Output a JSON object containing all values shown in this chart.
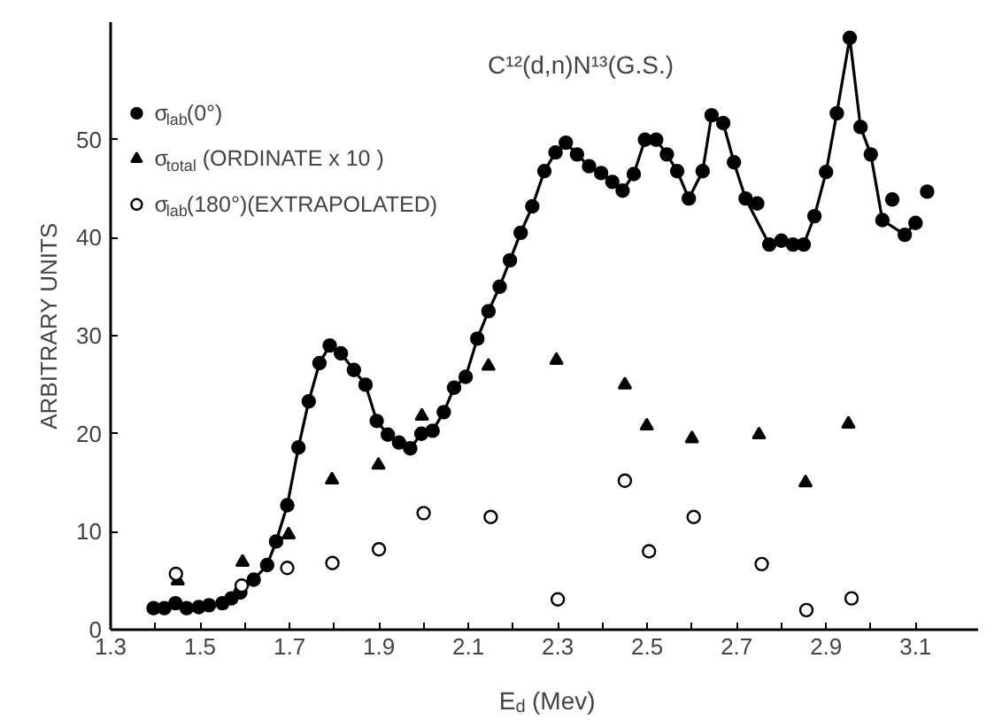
{
  "chart_data": {
    "type": "scatter",
    "title": "C¹²(d,n)N¹³(G.S.)",
    "xlabel": "E$_{d}$ (Mev)",
    "ylabel": "ARBITRARY UNITS",
    "xlim": [
      1.3,
      3.24
    ],
    "ylim": [
      0,
      62
    ],
    "xticks": [
      1.3,
      {
        "value": 1.4,
        "label": null
      },
      1.5,
      {
        "value": 1.6,
        "label": null
      },
      1.7,
      {
        "value": 1.8,
        "label": null
      },
      1.9,
      {
        "value": 2.0,
        "label": null
      },
      2.1,
      {
        "value": 2.2,
        "label": null
      },
      2.3,
      {
        "value": 2.4,
        "label": null
      },
      2.5,
      {
        "value": 2.6,
        "label": null
      },
      2.7,
      {
        "value": 2.8,
        "label": null
      },
      2.9,
      {
        "value": 3.0,
        "label": null
      },
      3.1
    ],
    "yticks": [
      0,
      10,
      20,
      30,
      40,
      50
    ],
    "grid": false,
    "legend": "top left",
    "series": [
      {
        "type": "line",
        "color": "#000000",
        "marker": "none",
        "x": [
          1.396,
          1.42,
          1.445,
          1.47,
          1.497,
          1.52,
          1.55,
          1.57,
          1.59,
          1.62,
          1.65,
          1.67,
          1.695,
          1.72,
          1.743,
          1.767,
          1.79,
          1.815,
          1.844,
          1.87,
          1.895,
          1.92,
          1.945,
          1.97,
          1.995,
          2.02,
          2.045,
          2.068,
          2.094,
          2.12,
          2.145,
          2.17,
          2.193,
          2.217,
          2.243,
          2.27,
          2.295,
          2.318,
          2.343,
          2.37,
          2.397,
          2.422,
          2.445,
          2.47,
          2.495,
          2.52,
          2.544,
          2.567,
          2.593,
          2.624,
          2.644,
          2.67,
          2.694,
          2.72,
          2.773,
          2.8,
          2.826,
          2.85,
          2.874,
          2.9,
          2.924,
          2.953,
          2.977,
          3.0,
          3.026,
          3.076,
          3.1
        ],
        "values": [
          2.2,
          2.2,
          2.5,
          2.2,
          2.3,
          2.5,
          2.7,
          3.2,
          3.8,
          5.1,
          6.6,
          9,
          12.7,
          18.6,
          23.3,
          27.2,
          29,
          28.2,
          26.5,
          25,
          21.3,
          19.9,
          19.1,
          18.5,
          20,
          20.3,
          22.2,
          24.7,
          25.8,
          29.7,
          32.5,
          35,
          37.7,
          40.5,
          43.2,
          46.8,
          48.7,
          49.7,
          48.5,
          47.3,
          46.6,
          45.7,
          44.8,
          46.5,
          50,
          50,
          48.5,
          46.8,
          44,
          46.8,
          52.5,
          51.7,
          47.7,
          44,
          39.3,
          39.7,
          39.3,
          39.3,
          42.2,
          46.7,
          52.7,
          60.4,
          51.3,
          48.5,
          41.8,
          40.3,
          41.5
        ]
      },
      {
        "type": "scatter",
        "name": "σ$_{lab}$(0°)",
        "color": "#000000",
        "marker": "circle",
        "x": [
          1.396,
          1.42,
          1.445,
          1.47,
          1.497,
          1.52,
          1.55,
          1.57,
          1.59,
          1.62,
          1.65,
          1.67,
          1.695,
          1.72,
          1.743,
          1.767,
          1.79,
          1.815,
          1.844,
          1.87,
          1.895,
          1.92,
          1.945,
          1.97,
          1.995,
          2.02,
          2.045,
          2.068,
          2.094,
          2.12,
          2.145,
          2.17,
          2.193,
          2.217,
          2.243,
          2.27,
          2.295,
          2.318,
          2.343,
          2.37,
          2.397,
          2.422,
          2.445,
          2.47,
          2.495,
          2.52,
          2.544,
          2.567,
          2.593,
          2.624,
          2.644,
          2.67,
          2.694,
          2.72,
          2.746,
          2.773,
          2.8,
          2.826,
          2.85,
          2.874,
          2.9,
          2.924,
          2.953,
          2.977,
          3.0,
          3.026,
          3.048,
          3.076,
          3.1,
          3.126
        ],
        "values": [
          2.2,
          2.2,
          2.7,
          2.2,
          2.3,
          2.5,
          2.7,
          3.2,
          3.8,
          5.1,
          6.6,
          9,
          12.7,
          18.6,
          23.3,
          27.2,
          29,
          28.2,
          26.5,
          25,
          21.3,
          19.9,
          19.1,
          18.5,
          20,
          20.3,
          22.2,
          24.7,
          25.8,
          29.7,
          32.5,
          35,
          37.7,
          40.5,
          43.2,
          46.8,
          48.7,
          49.7,
          48.5,
          47.3,
          46.6,
          45.7,
          44.8,
          46.5,
          50,
          50,
          48.5,
          46.8,
          44,
          46.8,
          52.5,
          51.7,
          47.7,
          44,
          43.5,
          39.3,
          39.7,
          39.3,
          39.3,
          42.2,
          46.7,
          52.7,
          60.4,
          51.3,
          48.5,
          41.8,
          43.9,
          40.3,
          41.5,
          44.7
        ]
      },
      {
        "name": "σ$_{total}$ (ORDINATE  x 10 )",
        "color": "#000000",
        "marker": "triangle",
        "x": [
          1.45,
          1.595,
          1.698,
          1.795,
          1.899,
          1.996,
          2.145,
          2.297,
          2.45,
          2.499,
          2.6,
          2.75,
          2.854,
          2.95
        ],
        "values": [
          5,
          6.9,
          9.7,
          15.3,
          16.8,
          21.8,
          26.9,
          27.5,
          25,
          20.8,
          19.5,
          19.9,
          15,
          21
        ]
      },
      {
        "name": "σ$_{lab}$(180°)(EXTRAPOLATED)",
        "color": "#000000",
        "marker": "circle_open",
        "x": [
          1.446,
          1.593,
          1.695,
          1.796,
          1.9,
          2.0,
          2.15,
          2.3,
          2.45,
          2.504,
          2.604,
          2.756,
          2.856,
          2.957
        ],
        "values": [
          5.7,
          4.5,
          6.3,
          6.8,
          8.2,
          11.9,
          11.5,
          3.1,
          15.2,
          8,
          11.5,
          6.7,
          2,
          3.2
        ]
      }
    ]
  }
}
